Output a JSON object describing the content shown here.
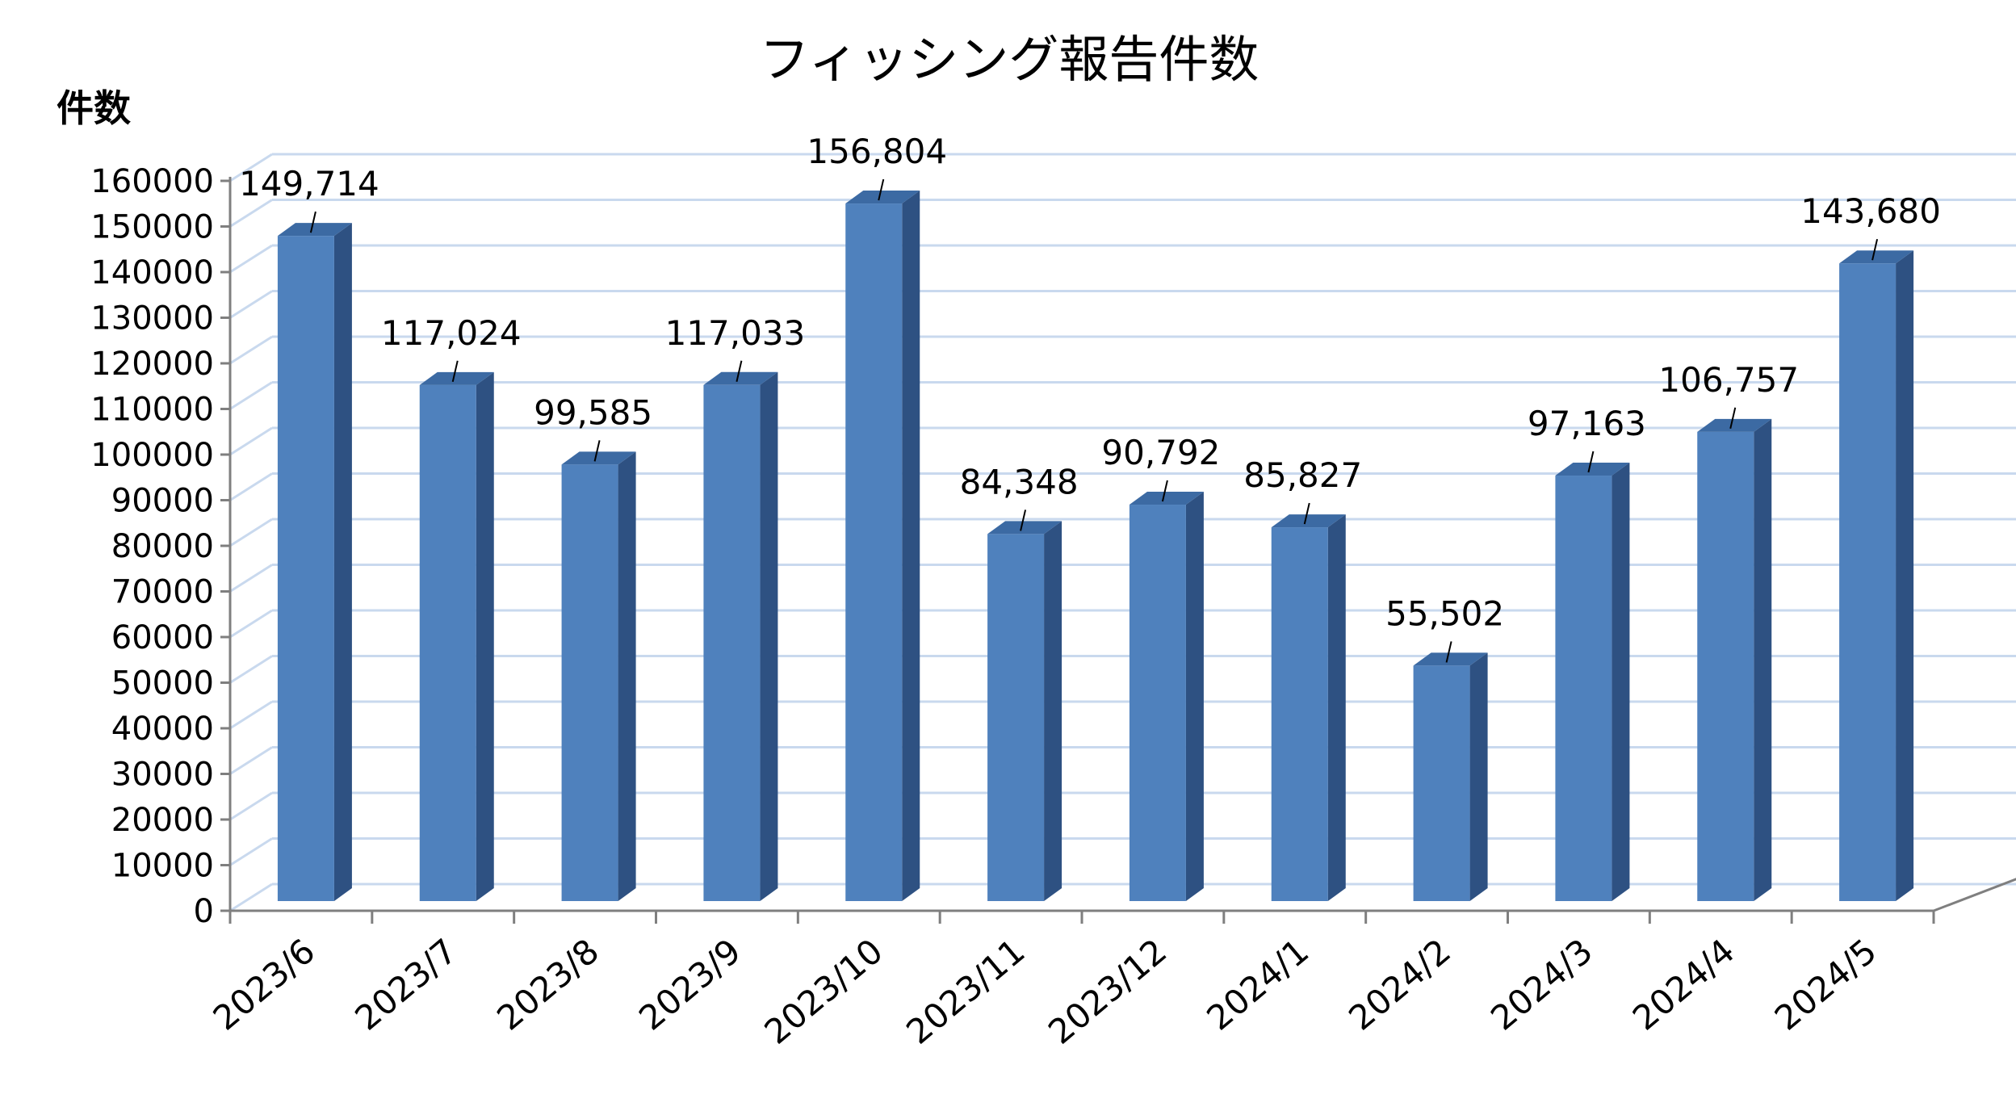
{
  "chart_data": {
    "type": "bar",
    "title": "フィッシング報告件数",
    "ylabel": "件数",
    "xlabel": "",
    "categories": [
      "2023/6",
      "2023/7",
      "2023/8",
      "2023/9",
      "2023/10",
      "2023/11",
      "2023/12",
      "2024/1",
      "2024/2",
      "2024/3",
      "2024/4",
      "2024/5"
    ],
    "values": [
      149714,
      117024,
      99585,
      117033,
      156804,
      84348,
      90792,
      85827,
      55502,
      97163,
      106757,
      143680
    ],
    "data_labels": [
      "149,714",
      "117,024",
      "99,585",
      "117,033",
      "156,804",
      "84,348",
      "90,792",
      "85,827",
      "55,502",
      "97,163",
      "106,757",
      "143,680"
    ],
    "yticks": [
      "0",
      "10000",
      "20000",
      "30000",
      "40000",
      "50000",
      "60000",
      "70000",
      "80000",
      "90000",
      "100000",
      "110000",
      "120000",
      "130000",
      "140000",
      "150000",
      "160000"
    ],
    "ylim": [
      0,
      160000
    ],
    "grid": true,
    "three_d": true,
    "legend": "none",
    "colors": {
      "bar_front": "#4f81bd",
      "bar_side": "#2e5182",
      "bar_top": "#3c6aa3",
      "grid": "#c9d9ee",
      "axis": "#7f7f7f"
    }
  }
}
